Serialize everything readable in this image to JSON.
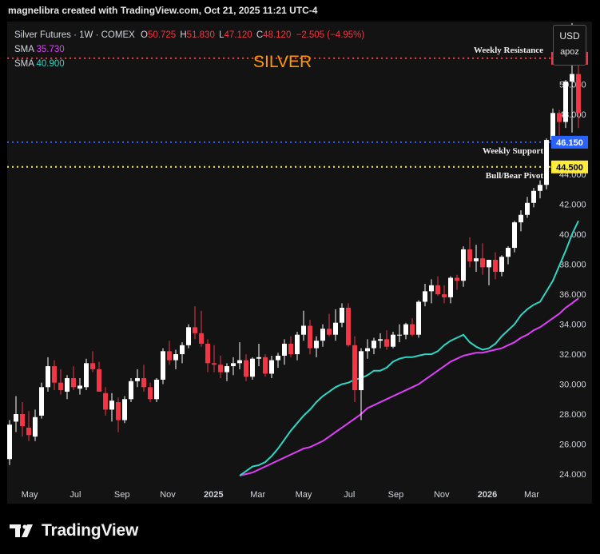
{
  "header": {
    "attribution": "magnelibra created with TradingView.com, Oct 21, 2025 11:21 UTC-4"
  },
  "legend": {
    "symbol": "Silver Futures · 1W · COMEX",
    "open_label": "O",
    "open": "50.725",
    "high_label": "H",
    "high": "51.830",
    "low_label": "L",
    "low": "47.120",
    "close_label": "C",
    "close": "48.120",
    "change": "−2.505 (−4.95%)",
    "sma1_label": "SMA",
    "sma1_value": "35.730",
    "sma2_label": "SMA",
    "sma2_value": "40.900"
  },
  "currency_box": {
    "currency": "USD",
    "user": "apoz"
  },
  "brand": {
    "name": "TradingView"
  },
  "colors": {
    "up": "#ffffff",
    "down": "#f23645",
    "sma_slow": "#e040fb",
    "sma_fast": "#2fd6c4",
    "resistance": "#f23645",
    "support": "#2962ff",
    "pivot": "#ffeb3b",
    "title": "#ff9800"
  },
  "chart_data": {
    "type": "candlestick",
    "title": "SILVER",
    "y_axis": {
      "ticks": [
        "24.000",
        "26.000",
        "28.000",
        "30.000",
        "32.000",
        "34.000",
        "36.000",
        "38.000",
        "40.000",
        "42.000",
        "44.000",
        "48.000",
        "50.000"
      ],
      "range": [
        23.2,
        54.2
      ],
      "side": "right"
    },
    "x_axis": {
      "labels": [
        {
          "text": "May",
          "date": "2024-05-01"
        },
        {
          "text": "Jul",
          "date": "2024-07-01"
        },
        {
          "text": "Sep",
          "date": "2024-09-01"
        },
        {
          "text": "Nov",
          "date": "2024-11-01"
        },
        {
          "text": "2025",
          "date": "2025-01-01"
        },
        {
          "text": "Mar",
          "date": "2025-03-01"
        },
        {
          "text": "May",
          "date": "2025-05-01"
        },
        {
          "text": "Jul",
          "date": "2025-07-01"
        },
        {
          "text": "Sep",
          "date": "2025-09-01"
        },
        {
          "text": "Nov",
          "date": "2025-11-01"
        },
        {
          "text": "2026",
          "date": "2026-01-01"
        },
        {
          "text": "Mar",
          "date": "2026-03-01"
        }
      ]
    },
    "levels": [
      {
        "name": "Weekly Resistance",
        "value": 51.75,
        "label": "51.750",
        "color": "#f23645"
      },
      {
        "name": "Weekly Support",
        "value": 46.15,
        "label": "46.150",
        "color": "#2962ff"
      },
      {
        "name": "Bull/Bear Pivot",
        "value": 44.5,
        "label": "44.500",
        "color": "#ffeb3b"
      }
    ],
    "series": [
      {
        "name": "SMA",
        "type": "line",
        "color": "#e040fb",
        "values": [
          23.9,
          24.0,
          24.1,
          24.3,
          24.5,
          24.7,
          24.9,
          25.1,
          25.3,
          25.5,
          25.7,
          25.8,
          26.0,
          26.2,
          26.5,
          26.8,
          27.1,
          27.4,
          27.7,
          28.0,
          28.4,
          28.6,
          28.8,
          29.0,
          29.2,
          29.4,
          29.6,
          29.8,
          30.0,
          30.3,
          30.6,
          30.9,
          31.2,
          31.5,
          31.7,
          31.9,
          32.0,
          32.1,
          32.1,
          32.2,
          32.3,
          32.4,
          32.6,
          32.8,
          33.1,
          33.3,
          33.6,
          33.8,
          34.1,
          34.4,
          34.7,
          35.1,
          35.4,
          35.73
        ]
      },
      {
        "name": "SMA",
        "type": "line",
        "color": "#2fd6c4",
        "values": [
          23.9,
          24.2,
          24.5,
          24.6,
          24.8,
          25.2,
          25.7,
          26.3,
          26.9,
          27.4,
          27.9,
          28.3,
          28.8,
          29.2,
          29.5,
          29.8,
          30.0,
          30.1,
          30.3,
          30.4,
          30.6,
          30.9,
          30.9,
          31.1,
          31.5,
          31.7,
          31.8,
          31.8,
          31.9,
          32.0,
          32.0,
          32.2,
          32.6,
          32.9,
          33.1,
          33.3,
          32.8,
          32.5,
          32.3,
          32.4,
          32.7,
          33.2,
          33.6,
          34.0,
          34.6,
          35.0,
          35.3,
          35.5,
          36.2,
          36.9,
          37.9,
          38.9,
          40.0,
          40.9
        ]
      }
    ],
    "candles": [
      [
        25.0,
        27.6,
        24.6,
        27.3
      ],
      [
        27.5,
        29.2,
        26.8,
        28.0
      ],
      [
        28.0,
        28.8,
        26.5,
        27.2
      ],
      [
        27.1,
        28.2,
        26.2,
        26.6
      ],
      [
        26.5,
        28.3,
        26.2,
        27.8
      ],
      [
        27.9,
        30.1,
        27.7,
        29.8
      ],
      [
        29.8,
        31.8,
        29.5,
        31.2
      ],
      [
        31.2,
        31.6,
        29.6,
        30.1
      ],
      [
        30.1,
        31.0,
        29.3,
        29.6
      ],
      [
        29.5,
        30.6,
        29.0,
        30.4
      ],
      [
        30.4,
        31.2,
        29.6,
        29.8
      ],
      [
        29.7,
        30.4,
        29.3,
        29.9
      ],
      [
        29.8,
        31.7,
        29.6,
        31.4
      ],
      [
        31.4,
        32.2,
        30.8,
        31.0
      ],
      [
        31.0,
        31.5,
        29.5,
        29.5
      ],
      [
        29.4,
        29.8,
        27.9,
        28.3
      ],
      [
        28.3,
        29.4,
        27.5,
        28.9
      ],
      [
        28.8,
        29.1,
        26.8,
        27.6
      ],
      [
        27.6,
        29.2,
        27.4,
        29.0
      ],
      [
        29.0,
        30.4,
        28.8,
        30.2
      ],
      [
        30.2,
        31.0,
        29.8,
        30.4
      ],
      [
        30.4,
        31.3,
        29.5,
        29.8
      ],
      [
        29.8,
        30.1,
        28.8,
        29.0
      ],
      [
        29.0,
        30.4,
        28.8,
        30.3
      ],
      [
        30.3,
        32.4,
        30.0,
        32.2
      ],
      [
        32.2,
        32.9,
        31.3,
        31.6
      ],
      [
        31.6,
        32.3,
        31.0,
        32.0
      ],
      [
        32.0,
        32.8,
        31.4,
        32.6
      ],
      [
        32.6,
        34.0,
        32.4,
        33.8
      ],
      [
        33.8,
        35.2,
        33.0,
        33.4
      ],
      [
        33.4,
        34.9,
        32.5,
        32.7
      ],
      [
        32.7,
        33.0,
        30.8,
        31.4
      ],
      [
        31.4,
        32.6,
        30.8,
        31.3
      ],
      [
        31.3,
        31.9,
        30.4,
        30.8
      ],
      [
        30.8,
        31.4,
        30.2,
        31.2
      ],
      [
        31.2,
        31.8,
        30.6,
        31.4
      ],
      [
        31.4,
        32.8,
        31.0,
        31.6
      ],
      [
        31.6,
        32.0,
        30.2,
        30.5
      ],
      [
        30.5,
        31.8,
        30.3,
        31.7
      ],
      [
        31.7,
        32.7,
        31.2,
        31.8
      ],
      [
        31.8,
        32.0,
        30.5,
        30.7
      ],
      [
        30.7,
        31.9,
        30.4,
        31.6
      ],
      [
        31.6,
        32.1,
        31.1,
        31.9
      ],
      [
        31.9,
        33.0,
        31.3,
        32.7
      ],
      [
        32.7,
        33.2,
        31.8,
        32.0
      ],
      [
        32.0,
        33.5,
        31.6,
        33.3
      ],
      [
        33.3,
        34.9,
        32.9,
        33.9
      ],
      [
        33.9,
        34.3,
        32.0,
        32.4
      ],
      [
        32.4,
        33.2,
        31.8,
        32.9
      ],
      [
        32.9,
        34.0,
        32.5,
        33.7
      ],
      [
        33.7,
        34.7,
        33.2,
        33.3
      ],
      [
        33.3,
        35.0,
        32.9,
        34.1
      ],
      [
        34.1,
        35.4,
        33.8,
        35.1
      ],
      [
        35.1,
        35.4,
        32.5,
        32.6
      ],
      [
        32.6,
        33.2,
        28.8,
        29.6
      ],
      [
        29.6,
        32.4,
        27.6,
        32.2
      ],
      [
        32.2,
        33.0,
        31.7,
        32.4
      ],
      [
        32.4,
        33.1,
        32.0,
        32.9
      ],
      [
        32.9,
        33.4,
        32.4,
        33.0
      ],
      [
        33.0,
        33.6,
        32.3,
        32.5
      ],
      [
        32.5,
        33.5,
        32.4,
        33.3
      ],
      [
        33.3,
        34.0,
        32.8,
        33.3
      ],
      [
        33.3,
        34.1,
        33.0,
        34.0
      ],
      [
        34.0,
        34.4,
        33.2,
        33.3
      ],
      [
        33.3,
        35.6,
        33.1,
        35.5
      ],
      [
        35.5,
        36.7,
        35.2,
        36.2
      ],
      [
        36.2,
        37.0,
        35.4,
        36.6
      ],
      [
        36.6,
        37.2,
        35.9,
        36.0
      ],
      [
        36.0,
        36.6,
        35.4,
        35.8
      ],
      [
        35.8,
        37.2,
        35.4,
        37.1
      ],
      [
        37.1,
        37.3,
        36.3,
        36.9
      ],
      [
        36.9,
        39.2,
        36.5,
        39.0
      ],
      [
        39.0,
        39.8,
        37.8,
        38.2
      ],
      [
        38.2,
        39.3,
        37.5,
        38.4
      ],
      [
        38.4,
        39.4,
        37.3,
        37.8
      ],
      [
        37.8,
        38.3,
        36.6,
        38.3
      ],
      [
        38.3,
        38.8,
        37.0,
        37.5
      ],
      [
        37.5,
        38.6,
        37.2,
        38.5
      ],
      [
        38.5,
        39.2,
        38.0,
        39.1
      ],
      [
        39.1,
        40.9,
        38.8,
        40.8
      ],
      [
        40.8,
        41.6,
        40.2,
        41.3
      ],
      [
        41.3,
        42.5,
        41.1,
        42.1
      ],
      [
        42.1,
        43.1,
        41.8,
        42.9
      ],
      [
        42.9,
        43.6,
        42.4,
        43.3
      ],
      [
        43.3,
        46.4,
        43.0,
        46.3
      ],
      [
        46.3,
        48.4,
        45.8,
        48.1
      ],
      [
        48.1,
        48.3,
        46.6,
        47.5
      ],
      [
        47.5,
        50.3,
        47.1,
        50.2
      ],
      [
        50.2,
        54.1,
        46.8,
        50.7
      ],
      [
        50.7,
        51.8,
        47.1,
        48.1
      ]
    ]
  },
  "annotations": {
    "weekly_resistance": "Weekly Resistance",
    "weekly_support": "Weekly Support",
    "pivot": "Bull/Bear Pivot"
  }
}
